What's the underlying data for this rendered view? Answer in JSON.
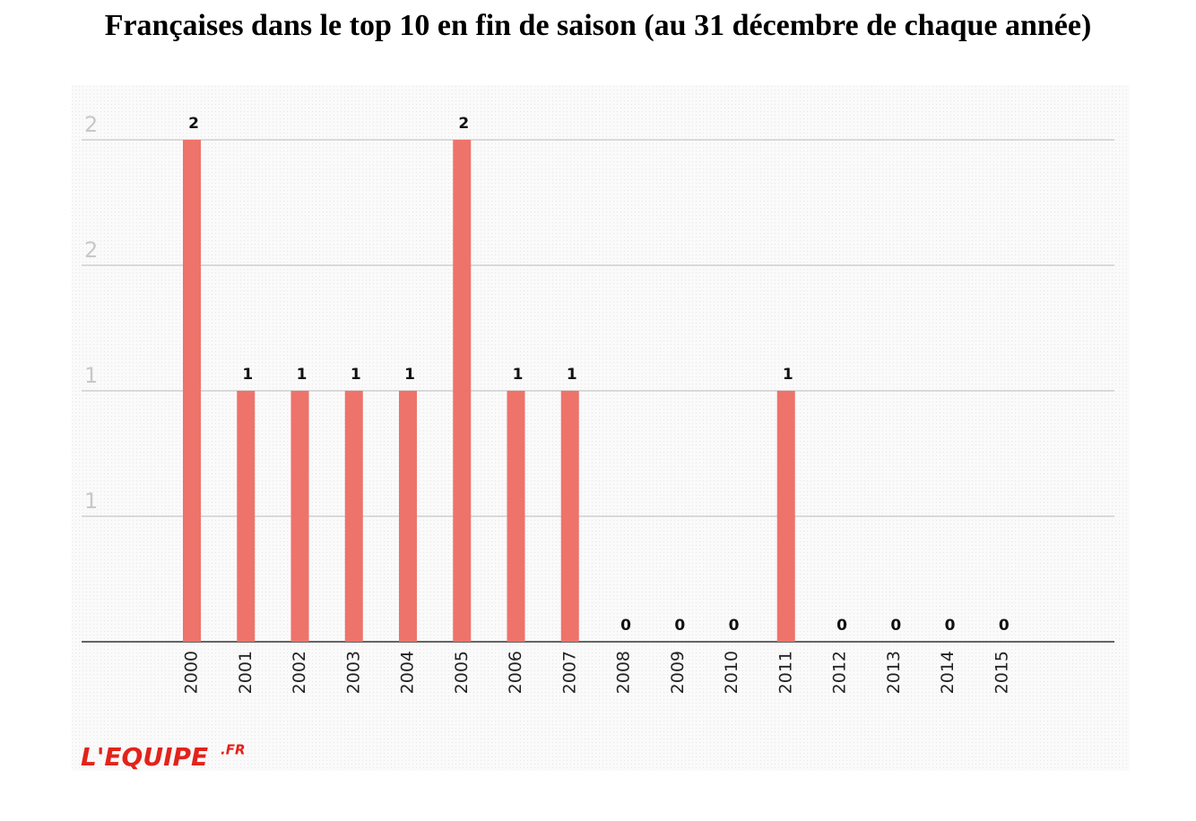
{
  "chart_data": {
    "type": "bar",
    "title": "Françaises dans le top 10 en fin de saison (au 31 décembre de chaque année)",
    "categories": [
      "2000",
      "2001",
      "2002",
      "2003",
      "2004",
      "2005",
      "2006",
      "2007",
      "2008",
      "2009",
      "2010",
      "2011",
      "2012",
      "2013",
      "2014",
      "2015"
    ],
    "values": [
      2,
      1,
      1,
      1,
      1,
      2,
      1,
      1,
      0,
      0,
      0,
      1,
      0,
      0,
      0,
      0
    ],
    "color": "#ee736a",
    "ylim": [
      0,
      2
    ],
    "yticks": [
      {
        "value": 0.5,
        "label": "1"
      },
      {
        "value": 1,
        "label": "1"
      },
      {
        "value": 1.5,
        "label": "2"
      },
      {
        "value": 2,
        "label": "2"
      }
    ],
    "grid": true,
    "logo": {
      "text": "L'EQUIPE",
      "suffix": ".FR"
    }
  }
}
